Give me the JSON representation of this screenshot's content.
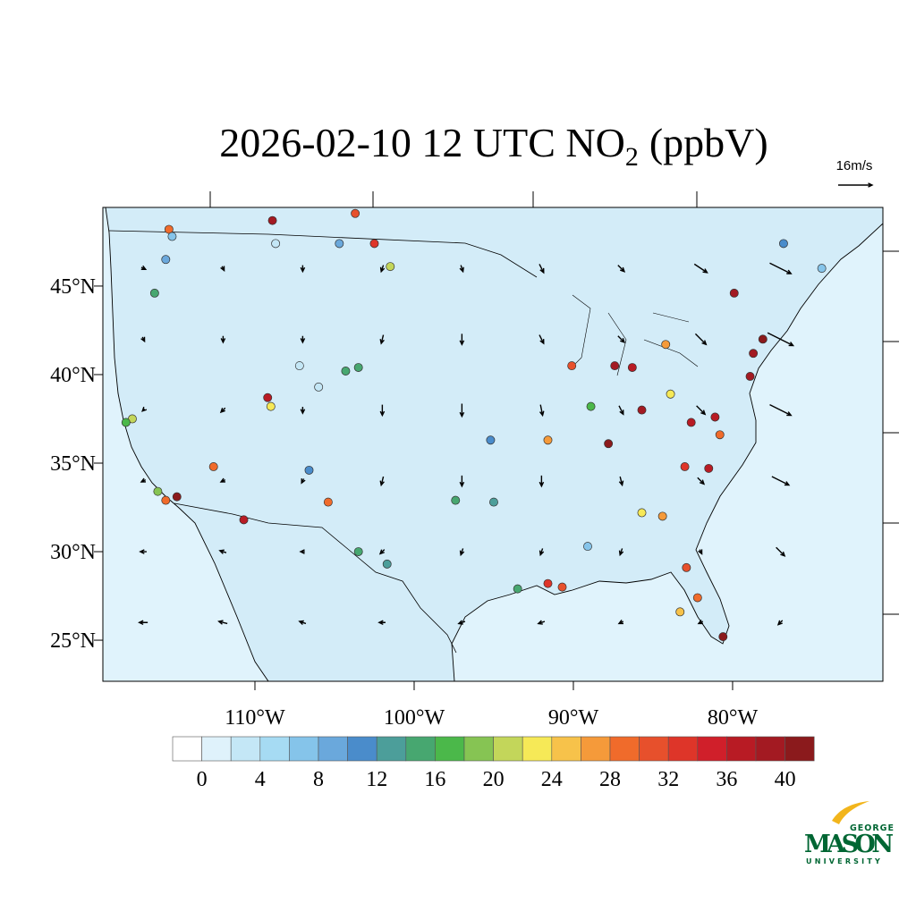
{
  "title": {
    "text": "2026-02-10 12 UTC NO",
    "subscript": "2",
    "unit": "(ppbV)"
  },
  "map": {
    "type": "map",
    "xlim": [
      -119.55,
      -70.56
    ],
    "ylim": [
      22.68,
      49.44
    ],
    "xticks": [
      {
        "value": -110,
        "label": "110°W"
      },
      {
        "value": -100,
        "label": "100°W"
      },
      {
        "value": -90,
        "label": "90°W"
      },
      {
        "value": -80,
        "label": "80°W"
      }
    ],
    "yticks": [
      {
        "value": 25,
        "label": "25°N"
      },
      {
        "value": 30,
        "label": "30°N"
      },
      {
        "value": 35,
        "label": "35°N"
      },
      {
        "value": 40,
        "label": "40°N"
      },
      {
        "value": 45,
        "label": "45°N"
      }
    ],
    "stations": {
      "lon": [
        -115.4,
        -115.2,
        -115.6,
        -116.3,
        -108.9,
        -103.7,
        -102.5,
        -104.7,
        -101.5,
        -109.2,
        -109.0,
        -117.7,
        -118.1,
        -116.1,
        -114.9,
        -115.6,
        -112.6,
        -110.7,
        -106.6,
        -105.4,
        -103.5,
        -103.5,
        -104.3,
        -101.7,
        -97.4,
        -95.2,
        -95.0,
        -91.6,
        -90.1,
        -88.9,
        -87.4,
        -86.3,
        -84.2,
        -83.9,
        -85.7,
        -87.8,
        -79.9,
        -78.7,
        -78.9,
        -78.1,
        -81.1,
        -82.6,
        -80.8,
        -83.0,
        -81.5,
        -85.7,
        -84.4,
        -89.1,
        -90.7,
        -91.6,
        -93.5,
        -82.9,
        -82.2,
        -80.6,
        -83.3,
        -76.8,
        -74.4,
        -108.7,
        -107.2,
        -106.0
      ],
      "lat": [
        48.2,
        47.8,
        46.5,
        44.6,
        48.7,
        49.1,
        47.4,
        47.4,
        46.1,
        38.7,
        38.2,
        37.5,
        37.3,
        33.4,
        33.1,
        32.9,
        34.8,
        31.8,
        34.6,
        32.8,
        30.0,
        40.4,
        40.2,
        29.3,
        32.9,
        36.3,
        32.8,
        36.3,
        40.5,
        38.2,
        40.5,
        40.4,
        41.7,
        38.9,
        38.0,
        36.1,
        44.6,
        41.2,
        39.9,
        42.0,
        37.6,
        37.3,
        36.6,
        34.8,
        34.7,
        32.2,
        32.0,
        30.3,
        28.0,
        28.2,
        27.9,
        29.1,
        27.4,
        25.2,
        26.6,
        47.4,
        46.0,
        47.4,
        40.5,
        39.3
      ],
      "values": [
        28,
        6,
        8,
        14,
        38,
        30,
        32,
        8,
        20,
        36,
        22,
        20,
        16,
        18,
        40,
        28,
        28,
        36,
        10,
        28,
        14,
        14,
        14,
        12,
        14,
        10,
        12,
        26,
        30,
        16,
        38,
        36,
        26,
        22,
        38,
        40,
        38,
        38,
        38,
        40,
        36,
        36,
        28,
        32,
        36,
        22,
        26,
        6,
        30,
        32,
        14,
        30,
        28,
        40,
        24,
        10,
        6,
        2,
        2,
        2
      ]
    },
    "wind": {
      "lon": [
        -117,
        -112,
        -107,
        -102,
        -97,
        -92,
        -87,
        -82,
        -77
      ],
      "lat": [
        46,
        42,
        38,
        34,
        30,
        26
      ],
      "u": [
        [
          2,
          1,
          0,
          -1,
          1,
          2,
          3,
          6,
          10
        ],
        [
          1,
          0,
          0,
          -1,
          0,
          2,
          3,
          5,
          12
        ],
        [
          -1,
          -2,
          0,
          0,
          0,
          1,
          2,
          4,
          10
        ],
        [
          -2,
          -2,
          -1,
          -1,
          0,
          0,
          1,
          3,
          8
        ],
        [
          -3,
          -3,
          -2,
          -2,
          -1,
          -1,
          -1,
          1,
          4
        ],
        [
          -4,
          -4,
          -3,
          -3,
          -3,
          -3,
          -2,
          -2,
          -2
        ]
      ],
      "v": [
        [
          -1,
          -2,
          -3,
          -3,
          -3,
          -4,
          -3,
          -4,
          -5
        ],
        [
          -2,
          -3,
          -3,
          -4,
          -5,
          -4,
          -3,
          -5,
          -6
        ],
        [
          -1,
          -2,
          -3,
          -5,
          -6,
          -5,
          -4,
          -4,
          -5
        ],
        [
          -1,
          -1,
          -2,
          -4,
          -5,
          -5,
          -4,
          -3,
          -4
        ],
        [
          0,
          1,
          0,
          -2,
          -3,
          -3,
          -3,
          -2,
          -4
        ],
        [
          0,
          1,
          1,
          0,
          -1,
          -1,
          -1,
          -1,
          -2
        ]
      ],
      "reference": {
        "value": 16,
        "label": "16m/s"
      }
    }
  },
  "colorbar": {
    "bounds": [
      0,
      2,
      4,
      6,
      8,
      10,
      12,
      14,
      16,
      18,
      20,
      22,
      24,
      26,
      28,
      30,
      32,
      34,
      36,
      38,
      40
    ],
    "ticks": [
      0,
      4,
      8,
      12,
      16,
      20,
      24,
      28,
      32,
      36,
      40
    ],
    "colors": [
      "#ffffff",
      "#dff2fb",
      "#c4e7f6",
      "#a6dbf3",
      "#85c4ea",
      "#6aa8dc",
      "#4a8ccb",
      "#4c9e9a",
      "#47a770",
      "#4bb84a",
      "#86c453",
      "#c3d65a",
      "#f6e957",
      "#f7c24a",
      "#f59a3a",
      "#f06b2b",
      "#e7502c",
      "#de3529",
      "#d01f2a",
      "#b81b24",
      "#a31a22",
      "#8b1a1c"
    ]
  },
  "logo": {
    "top": "GEORGE",
    "name": "MASON",
    "bottom": "UNIVERSITY"
  }
}
